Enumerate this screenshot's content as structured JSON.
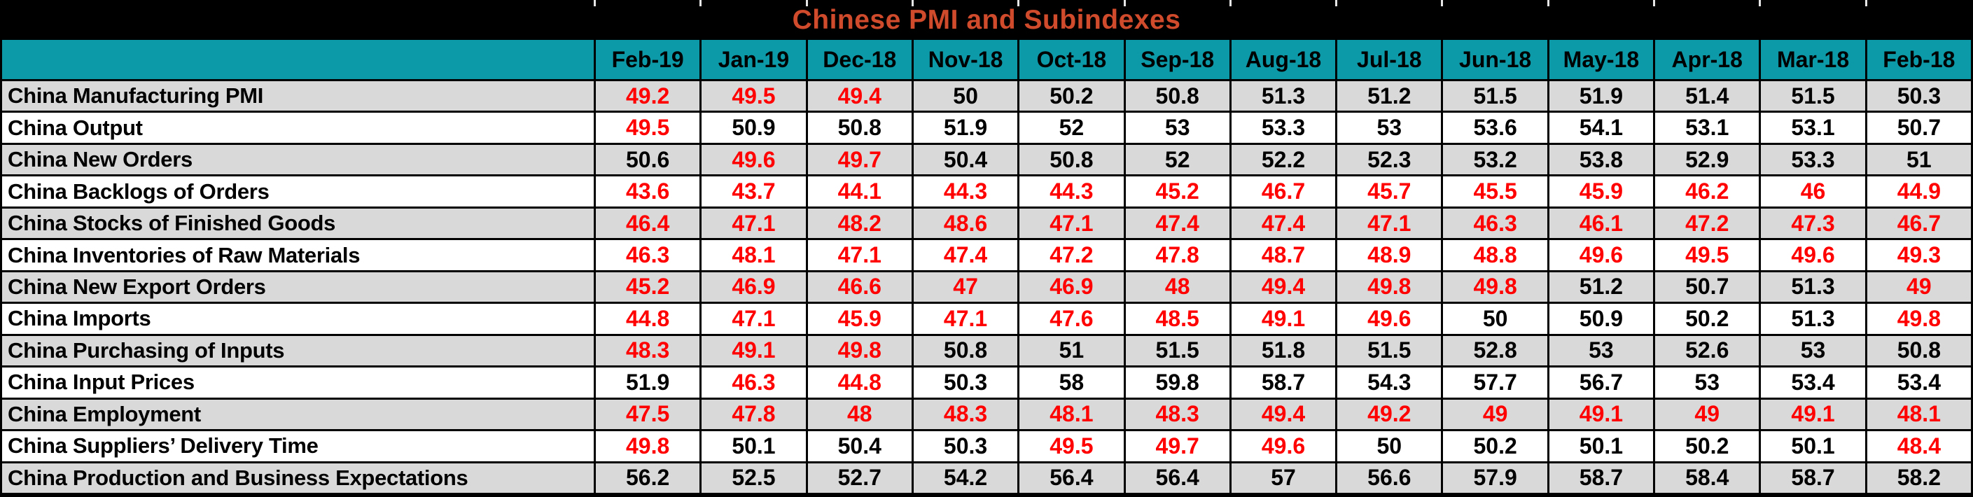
{
  "title": "Chinese PMI and Subindexes",
  "threshold": 50,
  "colors": {
    "title_text": "#D04A2C",
    "title_band_bg": "#000000",
    "header_bg": "#0C99A8",
    "header_text": "#000000",
    "row_bg_odd": "#D9D9D9",
    "row_bg_even": "#FFFFFF",
    "value_default": "#000000",
    "value_below_50": "#FF0000",
    "grid_line": "#000000"
  },
  "chart_data": {
    "type": "table",
    "title": "Chinese PMI and Subindexes",
    "columns": [
      "Feb-19",
      "Jan-19",
      "Dec-18",
      "Nov-18",
      "Oct-18",
      "Sep-18",
      "Aug-18",
      "Jul-18",
      "Jun-18",
      "May-18",
      "Apr-18",
      "Mar-18",
      "Feb-18"
    ],
    "rows": [
      {
        "label": "China Manufacturing PMI",
        "values": [
          49.2,
          49.5,
          49.4,
          50,
          50.2,
          50.8,
          51.3,
          51.2,
          51.5,
          51.9,
          51.4,
          51.5,
          50.3
        ]
      },
      {
        "label": "China Output",
        "values": [
          49.5,
          50.9,
          50.8,
          51.9,
          52,
          53,
          53.3,
          53,
          53.6,
          54.1,
          53.1,
          53.1,
          50.7
        ]
      },
      {
        "label": "China New Orders",
        "values": [
          50.6,
          49.6,
          49.7,
          50.4,
          50.8,
          52,
          52.2,
          52.3,
          53.2,
          53.8,
          52.9,
          53.3,
          51
        ]
      },
      {
        "label": "China Backlogs of Orders",
        "values": [
          43.6,
          43.7,
          44.1,
          44.3,
          44.3,
          45.2,
          46.7,
          45.7,
          45.5,
          45.9,
          46.2,
          46,
          44.9
        ]
      },
      {
        "label": "China Stocks of Finished Goods",
        "values": [
          46.4,
          47.1,
          48.2,
          48.6,
          47.1,
          47.4,
          47.4,
          47.1,
          46.3,
          46.1,
          47.2,
          47.3,
          46.7
        ]
      },
      {
        "label": "China Inventories of Raw Materials",
        "values": [
          46.3,
          48.1,
          47.1,
          47.4,
          47.2,
          47.8,
          48.7,
          48.9,
          48.8,
          49.6,
          49.5,
          49.6,
          49.3
        ]
      },
      {
        "label": "China New Export Orders",
        "values": [
          45.2,
          46.9,
          46.6,
          47,
          46.9,
          48,
          49.4,
          49.8,
          49.8,
          51.2,
          50.7,
          51.3,
          49
        ]
      },
      {
        "label": "China Imports",
        "values": [
          44.8,
          47.1,
          45.9,
          47.1,
          47.6,
          48.5,
          49.1,
          49.6,
          50,
          50.9,
          50.2,
          51.3,
          49.8
        ]
      },
      {
        "label": "China Purchasing of Inputs",
        "values": [
          48.3,
          49.1,
          49.8,
          50.8,
          51,
          51.5,
          51.8,
          51.5,
          52.8,
          53,
          52.6,
          53,
          50.8
        ]
      },
      {
        "label": "China Input Prices",
        "values": [
          51.9,
          46.3,
          44.8,
          50.3,
          58,
          59.8,
          58.7,
          54.3,
          57.7,
          56.7,
          53,
          53.4,
          53.4
        ]
      },
      {
        "label": "China Employment",
        "values": [
          47.5,
          47.8,
          48,
          48.3,
          48.1,
          48.3,
          49.4,
          49.2,
          49,
          49.1,
          49,
          49.1,
          48.1
        ]
      },
      {
        "label": "China Suppliers’ Delivery Time",
        "values": [
          49.8,
          50.1,
          50.4,
          50.3,
          49.5,
          49.7,
          49.6,
          50,
          50.2,
          50.1,
          50.2,
          50.1,
          48.4
        ]
      },
      {
        "label": "China Production and Business Expectations",
        "values": [
          56.2,
          52.5,
          52.7,
          54.2,
          56.4,
          56.4,
          57,
          56.6,
          57.9,
          58.7,
          58.4,
          58.7,
          58.2
        ]
      }
    ]
  }
}
